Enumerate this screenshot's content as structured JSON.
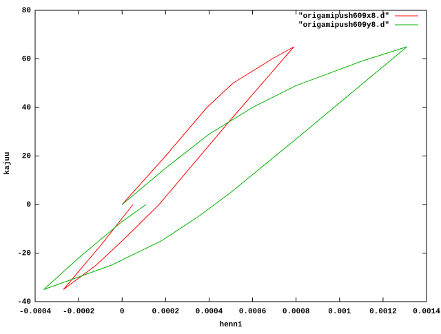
{
  "chart_data": {
    "type": "line",
    "xlabel": "henni",
    "ylabel": "kajuu",
    "xlim": [
      -0.0004,
      0.0014
    ],
    "xticks": [
      -0.0004,
      -0.0002,
      0,
      0.0002,
      0.0004,
      0.0006,
      0.0008,
      0.001,
      0.0012,
      0.0014
    ],
    "ylim": [
      -40,
      80
    ],
    "yticks": [
      -40,
      -20,
      0,
      20,
      40,
      60,
      80
    ],
    "legend": "top-right",
    "series": [
      {
        "name": "\"origamipush609x8.d\"",
        "color": "#ff0000",
        "x": [
          0,
          0.0002,
          0.00039,
          0.00051,
          0.00069,
          0.00079,
          0.0005,
          0.00017,
          0,
          -0.00012,
          -0.00027,
          -0.0001,
          5e-05
        ],
        "values": [
          0,
          20,
          40,
          50,
          60,
          65,
          35,
          0,
          -15,
          -25,
          -35,
          -17,
          0
        ]
      },
      {
        "name": "\"origamipush609y8.d\"",
        "color": "#00b000",
        "x": [
          0,
          0.0002,
          0.0004,
          0.0006,
          0.0008,
          0.0011,
          0.00131,
          0.0008,
          0.0005,
          0.00035,
          0.00018,
          -5e-05,
          -0.00036,
          -0.0002,
          0,
          0.00011
        ],
        "values": [
          0,
          15,
          29,
          40,
          49,
          59,
          65,
          27,
          5,
          -5,
          -15,
          -25,
          -35,
          -22,
          -7,
          0
        ]
      }
    ]
  }
}
